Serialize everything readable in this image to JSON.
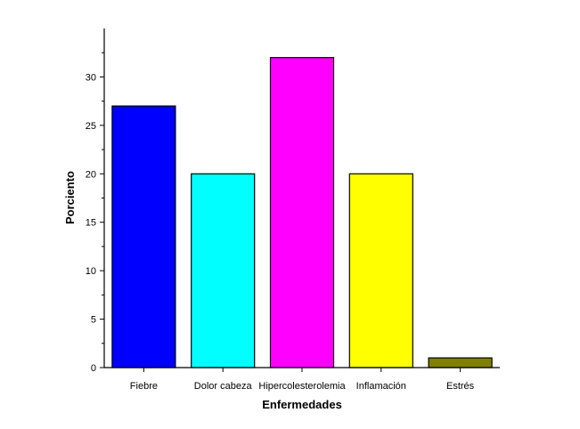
{
  "chart_data": {
    "type": "bar",
    "title": "",
    "xlabel": "Enfermedades",
    "ylabel": "Porciento",
    "categories": [
      "Fiebre",
      "Dolor cabeza",
      "Hipercolesterolemia",
      "Inflamación",
      "Estrés"
    ],
    "values": [
      27,
      20,
      32,
      20,
      1
    ],
    "colors": [
      "#0000FF",
      "#00FFFF",
      "#FF00FF",
      "#FFFF00",
      "#808000"
    ],
    "ylim": [
      0,
      35
    ],
    "yticks": [
      0,
      5,
      10,
      15,
      20,
      25,
      30
    ],
    "grid": false,
    "legend": "none"
  }
}
